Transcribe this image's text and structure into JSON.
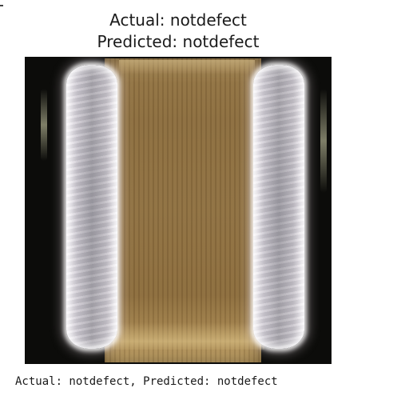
{
  "figure": {
    "title_line_1": "Actual: notdefect",
    "title_line_2": "Predicted: notdefect"
  },
  "output": {
    "caption": "Actual: notdefect, Predicted: notdefect"
  }
}
